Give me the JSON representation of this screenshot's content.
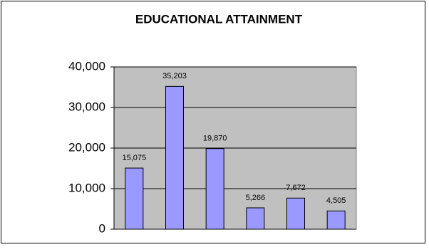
{
  "chart_data": {
    "type": "bar",
    "title": "EDUCATIONAL ATTAINMENT",
    "categories": [
      null,
      null,
      null,
      null,
      null,
      null
    ],
    "values": [
      15075,
      35203,
      19870,
      5266,
      7672,
      4505
    ],
    "value_labels": [
      "15,075",
      "35,203",
      "19,870",
      "5,266",
      "7,672",
      "4,505"
    ],
    "color": "#9999ff",
    "ylim": [
      0,
      40000
    ],
    "yticks": [
      0,
      {
        "value": 10000,
        "label": "10,000"
      },
      {
        "value": 20000,
        "label": "20,000"
      },
      {
        "value": 30000,
        "label": "30,000"
      },
      {
        "value": 40000,
        "label": "40,000"
      }
    ],
    "grid": true
  }
}
